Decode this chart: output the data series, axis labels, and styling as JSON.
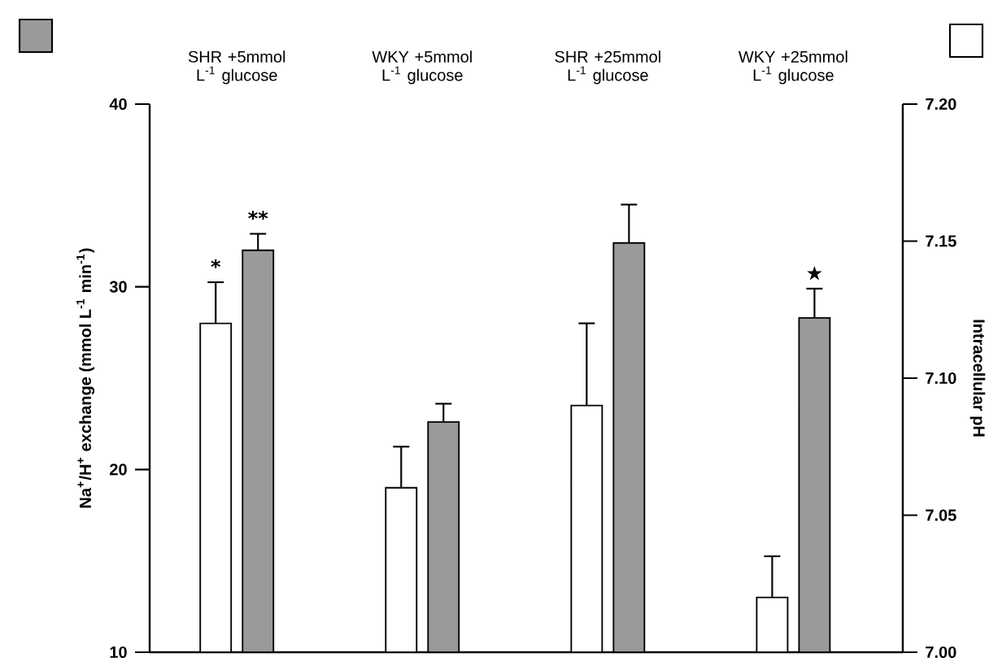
{
  "chart_data": {
    "type": "bar",
    "categories": [
      "SHR +5mmol L$^{-1}$ glucose",
      "WKY +5mmol L$^{-1}$ glucose",
      "SHR +25mmol L$^{-1}$ glucose",
      "WKY +25mmol L$^{-1}$ glucose"
    ],
    "series": [
      {
        "color": "#ffffff",
        "axis": "y2",
        "values": [
          7.12,
          7.06,
          7.09,
          7.02
        ],
        "errors": [
          [
            7.12,
            7.135
          ],
          [
            7.06,
            7.075
          ],
          [
            7.09,
            7.12
          ],
          [
            7.02,
            7.035
          ]
        ]
      },
      {
        "color": "#9a9a9a",
        "values": [
          32.0,
          22.6,
          32.4,
          28.3
        ],
        "errors": [
          [
            32.0,
            32.9
          ],
          [
            22.6,
            23.6
          ],
          [
            32.4,
            34.5
          ],
          [
            28.3,
            29.9
          ]
        ]
      }
    ],
    "ylabel": "Na$^{+}$/H$^{+}$ exchange (mmol L$^{-1}$ min$^{-1}$)",
    "y2label": "Intracellular pH",
    "ylim": [
      10,
      40
    ],
    "yticks": [
      10,
      20,
      30,
      40
    ],
    "y2lim": [
      7.0,
      7.2
    ],
    "y2ticks": [
      {
        "value": 7.0,
        "label": "7.00"
      },
      {
        "value": 7.05,
        "label": "7.05"
      },
      {
        "value": 7.1,
        "label": "7.10"
      },
      {
        "value": 7.15,
        "label": "7.15"
      },
      {
        "value": 7.2,
        "label": "7.20"
      }
    ],
    "annotations": [
      "*",
      "**",
      "★"
    ]
  }
}
